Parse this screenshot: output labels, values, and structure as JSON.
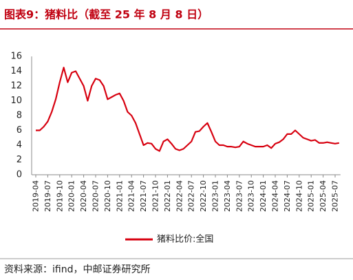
{
  "chart_data": {
    "type": "line",
    "title": "图表9：猪料比（截至 25 年 8 月 8 日）",
    "source": "资料来源：ifind，中邮证券研究所",
    "categories": [
      "2019-04",
      null,
      null,
      "2019-07",
      null,
      null,
      "2019-10",
      null,
      null,
      "2020-01",
      null,
      null,
      "2020-04",
      null,
      null,
      "2020-07",
      null,
      null,
      "2020-10",
      null,
      null,
      "2021-01",
      null,
      null,
      "2021-04",
      null,
      null,
      "2021-07",
      null,
      null,
      "2021-10",
      null,
      null,
      "2022-01",
      null,
      null,
      "2022-04",
      null,
      null,
      "2022-07",
      null,
      null,
      "2022-10",
      null,
      null,
      "2023-01",
      null,
      null,
      "2023-04",
      null,
      null,
      "2023-07",
      null,
      null,
      "2023-10",
      null,
      null,
      "2024-01",
      null,
      null,
      "2024-04",
      null,
      null,
      "2024-07",
      null,
      null,
      "2024-10",
      null,
      null,
      "2025-01",
      null,
      null,
      "2025-04",
      null,
      null,
      "2025-07",
      null
    ],
    "series": [
      {
        "name": "猪料比价:全国",
        "color": "#d7000f",
        "values": [
          6.0,
          6.0,
          6.5,
          7.2,
          8.5,
          10.2,
          12.5,
          14.5,
          12.5,
          13.8,
          14.0,
          13.0,
          12.0,
          10.0,
          12.0,
          13.0,
          12.8,
          12.0,
          10.2,
          10.5,
          10.8,
          11.0,
          10.0,
          8.5,
          8.0,
          7.0,
          5.5,
          4.0,
          4.3,
          4.2,
          3.5,
          3.2,
          4.5,
          4.8,
          4.2,
          3.5,
          3.3,
          3.5,
          4.0,
          4.5,
          5.8,
          5.9,
          6.5,
          7.0,
          5.8,
          4.5,
          4.0,
          4.0,
          3.8,
          3.8,
          3.7,
          3.8,
          4.5,
          4.2,
          4.0,
          3.8,
          3.8,
          3.8,
          4.0,
          3.6,
          4.2,
          4.4,
          4.8,
          5.5,
          5.5,
          6.0,
          5.5,
          5.0,
          4.8,
          4.6,
          4.7,
          4.3,
          4.3,
          4.4,
          4.3,
          4.2,
          4.3
        ]
      }
    ],
    "ylim": [
      0,
      16
    ],
    "yticks": [
      0,
      2,
      4,
      6,
      8,
      10,
      12,
      14,
      16
    ],
    "grid": false
  }
}
